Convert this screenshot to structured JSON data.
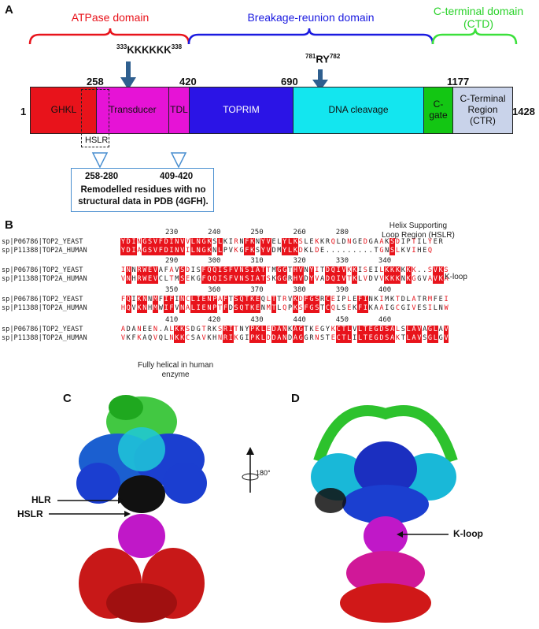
{
  "panels": {
    "a": "A",
    "b": "B",
    "c": "C",
    "d": "D"
  },
  "domains": {
    "atpase": "ATPase domain",
    "breakage": "Breakage-reunion domain",
    "ctd": "C-terminal domain\n(CTD)",
    "atpase_color": "#e8131b",
    "breakage_color": "#1a1ae0",
    "ctd_color": "#3be03b"
  },
  "markers": {
    "kk": "333KKKKKK338",
    "kk_pre": "333",
    "kk_main": "KKKKKK",
    "kk_post": "338",
    "ry_pre": "781",
    "ry_main": "RY",
    "ry_post": "782"
  },
  "numbers": {
    "n1": "1",
    "n258": "258",
    "n420": "420",
    "n690": "690",
    "n1177": "1177",
    "n1428": "1428"
  },
  "segments": {
    "ghkl": "GHKL",
    "transducer": "Transducer",
    "tdl": "TDL",
    "toprim": "TOPRIM",
    "dna": "DNA cleavage",
    "cgate": "C-gate",
    "ctr": "C-Terminal\nRegion\n(CTR)",
    "hslr": "HSLR"
  },
  "segment_colors": {
    "ghkl": "#e8131b",
    "transducer": "#e613d6",
    "tdl": "#e613d6",
    "toprim": "#2b14e6",
    "dna": "#13e6ef",
    "cgate": "#13c613",
    "ctr": "#c9d3ea"
  },
  "remodel": {
    "r1": "258-280",
    "r2": "409-420",
    "text": "Remodelled residues with no\nstructural data in PDB (4GFH)."
  },
  "alignment": {
    "id_a": "sp|P06786|TOP2_YEAST",
    "id_b": "sp|P11388|TOP2A_HUMAN",
    "blocks": [
      {
        "ruler": "230       240       250       260       280",
        "a": "YDINGSVFDINVVLNGKSLKIRNFKNYVELYLKSLEKKRQLDNGEDGAAKSDIPTILYER",
        "b": "YDIAGSVFDINVILNGKNLPVKGFKSYVDMYLKDKLDE.........TGNSLKVIHEQ"
      },
      {
        "ruler": "290       300       310       320       330       340",
        "a": "INNRWEVAFAVSDISFQQISFVNSIATTMGGTHVNYITDQIVKKISEILKKKKKK..SVKS",
        "b": "VNHRWEVCLTMSEKGFQQISFVNSIATSKGGRHVDYVADQIVTKLVDVVKKKNKGGVAVKA"
      },
      {
        "ruler": "350       360       370       380       390       400",
        "a": "FQIKNNMFIFINCLIENPAFTSQTKEQLTTRVKDFGSRCEIPLEFINKIMKTDLATRMFEI",
        "b": "HQVKNHMWIFVNALIENPTFDSQTKENMTLQPKSFGSTCQLSEKFIKAAIGCGIVESILNW"
      },
      {
        "ruler": "410       420       430       440       450       460",
        "a": "ADANEEN.ALKKSDGTRKSRITNYPKLEDANKAGTKEGYKCTLVLTEGDSALSLAVAGLAV",
        "b": "VKFKAQVQLNKKCSAVKHNRIKGIPKLDDANDAGGRNSTECTLILTEGDSAKTLAVSGLGV"
      }
    ],
    "hslr_label": "Helix Supporting\nLoop Region (HSLR)",
    "kloop_label": "K-loop",
    "helical_label": "Fully helical in human\nenzyme"
  },
  "structure": {
    "rotate": "180°",
    "hlr": "HLR",
    "hslr": "HSLR",
    "kloop": "K-loop"
  }
}
